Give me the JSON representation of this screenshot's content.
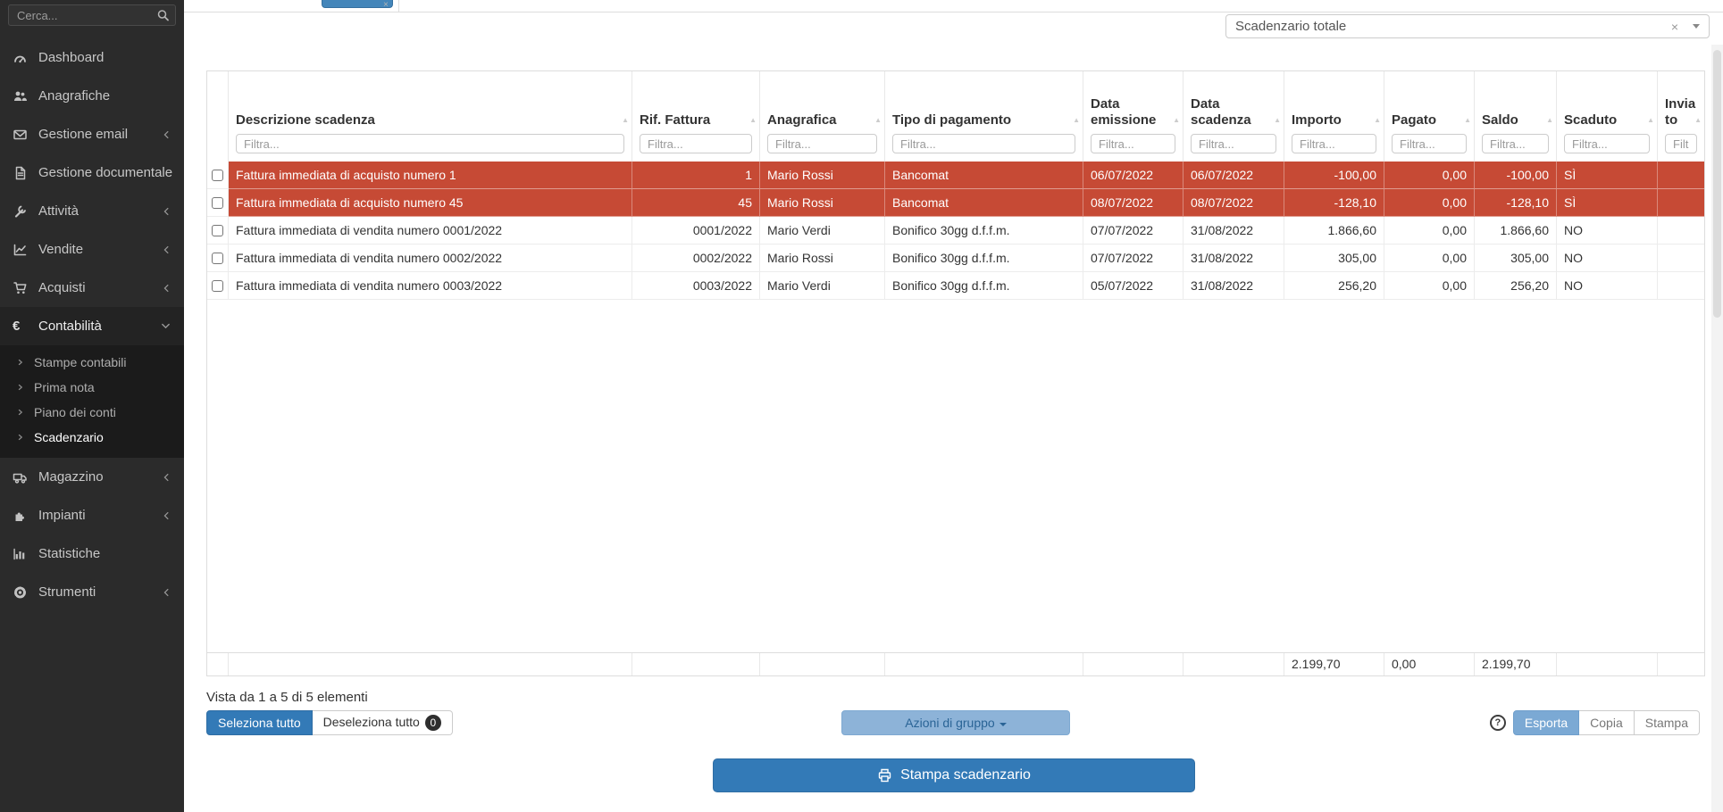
{
  "sidebar": {
    "search_placeholder": "Cerca...",
    "items": [
      {
        "label": "Dashboard",
        "icon": "tachometer"
      },
      {
        "label": "Anagrafiche",
        "icon": "users"
      },
      {
        "label": "Gestione email",
        "icon": "envelope",
        "chevron": "left"
      },
      {
        "label": "Gestione documentale",
        "icon": "document"
      },
      {
        "label": "Attività",
        "icon": "wrench",
        "chevron": "left"
      },
      {
        "label": "Vendite",
        "icon": "line-chart",
        "chevron": "left"
      },
      {
        "label": "Acquisti",
        "icon": "cart",
        "chevron": "left"
      },
      {
        "label": "Contabilità",
        "icon": "euro",
        "chevron": "down",
        "expanded": true,
        "children": [
          "Stampe contabili",
          "Prima nota",
          "Piano dei conti",
          "Scadenzario"
        ],
        "active_child": "Scadenzario"
      },
      {
        "label": "Magazzino",
        "icon": "truck",
        "chevron": "left"
      },
      {
        "label": "Impianti",
        "icon": "puzzle",
        "chevron": "left"
      },
      {
        "label": "Statistiche",
        "icon": "bar-chart"
      },
      {
        "label": "Strumenti",
        "icon": "gear",
        "chevron": "left"
      }
    ]
  },
  "topbar": {
    "filter": {
      "value": "Scadenzario totale"
    }
  },
  "table": {
    "columns": [
      {
        "key": "cb",
        "label": ""
      },
      {
        "key": "desc",
        "label": "Descrizione scadenza",
        "filter": "Filtra..."
      },
      {
        "key": "rif",
        "label": "Rif. Fattura",
        "filter": "Filtra..."
      },
      {
        "key": "ana",
        "label": "Anagrafica",
        "filter": "Filtra..."
      },
      {
        "key": "tipo",
        "label": "Tipo di pagamento",
        "filter": "Filtra..."
      },
      {
        "key": "emis",
        "label": "Data emissione",
        "filter": "Filtra..."
      },
      {
        "key": "dscad",
        "label": "Data scadenza",
        "filter": "Filtra..."
      },
      {
        "key": "imp",
        "label": "Importo",
        "filter": "Filtra..."
      },
      {
        "key": "pag",
        "label": "Pagato",
        "filter": "Filtra..."
      },
      {
        "key": "saldo",
        "label": "Saldo",
        "filter": "Filtra..."
      },
      {
        "key": "scad",
        "label": "Scaduto",
        "filter": "Filtra..."
      },
      {
        "key": "inv",
        "label": "Inviato",
        "filter": "Filtra..."
      }
    ],
    "rows": [
      {
        "overdue": true,
        "desc": "Fattura immediata di acquisto numero 1",
        "rif": "1",
        "ana": "Mario Rossi",
        "tipo": "Bancomat",
        "emis": "06/07/2022",
        "dscad": "06/07/2022",
        "imp": "-100,00",
        "pag": "0,00",
        "saldo": "-100,00",
        "scad": "SÌ",
        "inv": ""
      },
      {
        "overdue": true,
        "desc": "Fattura immediata di acquisto numero 45",
        "rif": "45",
        "ana": "Mario Rossi",
        "tipo": "Bancomat",
        "emis": "08/07/2022",
        "dscad": "08/07/2022",
        "imp": "-128,10",
        "pag": "0,00",
        "saldo": "-128,10",
        "scad": "SÌ",
        "inv": ""
      },
      {
        "overdue": false,
        "desc": "Fattura immediata di vendita numero 0001/2022",
        "rif": "0001/2022",
        "ana": "Mario Verdi",
        "tipo": "Bonifico 30gg d.f.f.m.",
        "emis": "07/07/2022",
        "dscad": "31/08/2022",
        "imp": "1.866,60",
        "pag": "0,00",
        "saldo": "1.866,60",
        "scad": "NO",
        "inv": ""
      },
      {
        "overdue": false,
        "desc": "Fattura immediata di vendita numero 0002/2022",
        "rif": "0002/2022",
        "ana": "Mario Rossi",
        "tipo": "Bonifico 30gg d.f.f.m.",
        "emis": "07/07/2022",
        "dscad": "31/08/2022",
        "imp": "305,00",
        "pag": "0,00",
        "saldo": "305,00",
        "scad": "NO",
        "inv": ""
      },
      {
        "overdue": false,
        "desc": "Fattura immediata di vendita numero 0003/2022",
        "rif": "0003/2022",
        "ana": "Mario Verdi",
        "tipo": "Bonifico 30gg d.f.f.m.",
        "emis": "05/07/2022",
        "dscad": "31/08/2022",
        "imp": "256,20",
        "pag": "0,00",
        "saldo": "256,20",
        "scad": "NO",
        "inv": ""
      }
    ],
    "footer": {
      "imp": "2.199,70",
      "pag": "0,00",
      "saldo": "2.199,70"
    },
    "info": "Vista da 1 a 5 di 5 elementi"
  },
  "actions": {
    "select_all": "Seleziona tutto",
    "deselect_all": "Deseleziona tutto",
    "deselect_count": "0",
    "group_actions": "Azioni di gruppo",
    "help": "?",
    "export": "Esporta",
    "copy": "Copia",
    "print": "Stampa",
    "print_schedule": "Stampa scadenzario"
  },
  "colors": {
    "overdue_row": "#c64a35",
    "primary": "#337ab7",
    "sidebar_bg": "#2b2b2b"
  }
}
